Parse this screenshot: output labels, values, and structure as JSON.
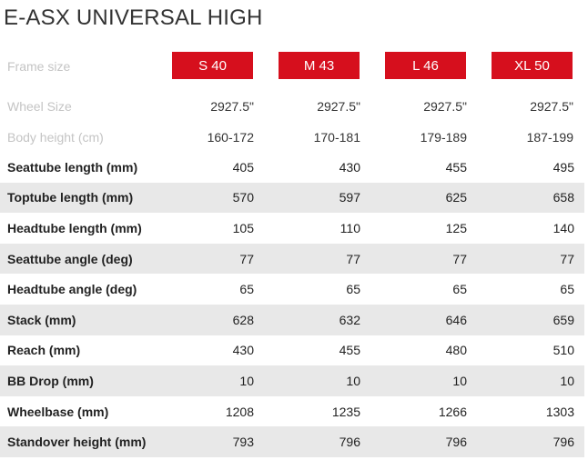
{
  "title": "E-ASX UNIVERSAL HIGH",
  "frame_size_label": "Frame size",
  "sizes": [
    "S 40",
    "M 43",
    "L 46",
    "XL 50"
  ],
  "info_rows": [
    {
      "label": "Wheel Size",
      "values": [
        "2927.5\"",
        "2927.5\"",
        "2927.5\"",
        "2927.5\""
      ]
    },
    {
      "label": "Body height (cm)",
      "values": [
        "160-172",
        "170-181",
        "179-189",
        "187-199"
      ]
    }
  ],
  "geometry": [
    {
      "label": "Seattube length (mm)",
      "values": [
        "405",
        "430",
        "455",
        "495"
      ]
    },
    {
      "label": "Toptube length (mm)",
      "values": [
        "570",
        "597",
        "625",
        "658"
      ]
    },
    {
      "label": "Headtube length (mm)",
      "values": [
        "105",
        "110",
        "125",
        "140"
      ]
    },
    {
      "label": "Seattube angle (deg)",
      "values": [
        "77",
        "77",
        "77",
        "77"
      ]
    },
    {
      "label": "Headtube angle (deg)",
      "values": [
        "65",
        "65",
        "65",
        "65"
      ]
    },
    {
      "label": "Stack (mm)",
      "values": [
        "628",
        "632",
        "646",
        "659"
      ]
    },
    {
      "label": "Reach (mm)",
      "values": [
        "430",
        "455",
        "480",
        "510"
      ]
    },
    {
      "label": "BB Drop (mm)",
      "values": [
        "10",
        "10",
        "10",
        "10"
      ]
    },
    {
      "label": "Wheelbase (mm)",
      "values": [
        "1208",
        "1235",
        "1266",
        "1303"
      ]
    },
    {
      "label": "Standover height (mm)",
      "values": [
        "793",
        "796",
        "796",
        "796"
      ]
    }
  ],
  "colors": {
    "size_button_bg": "#d60f1d",
    "alt_row_bg": "#e8e8e8",
    "muted_text": "#c4c4c4"
  }
}
